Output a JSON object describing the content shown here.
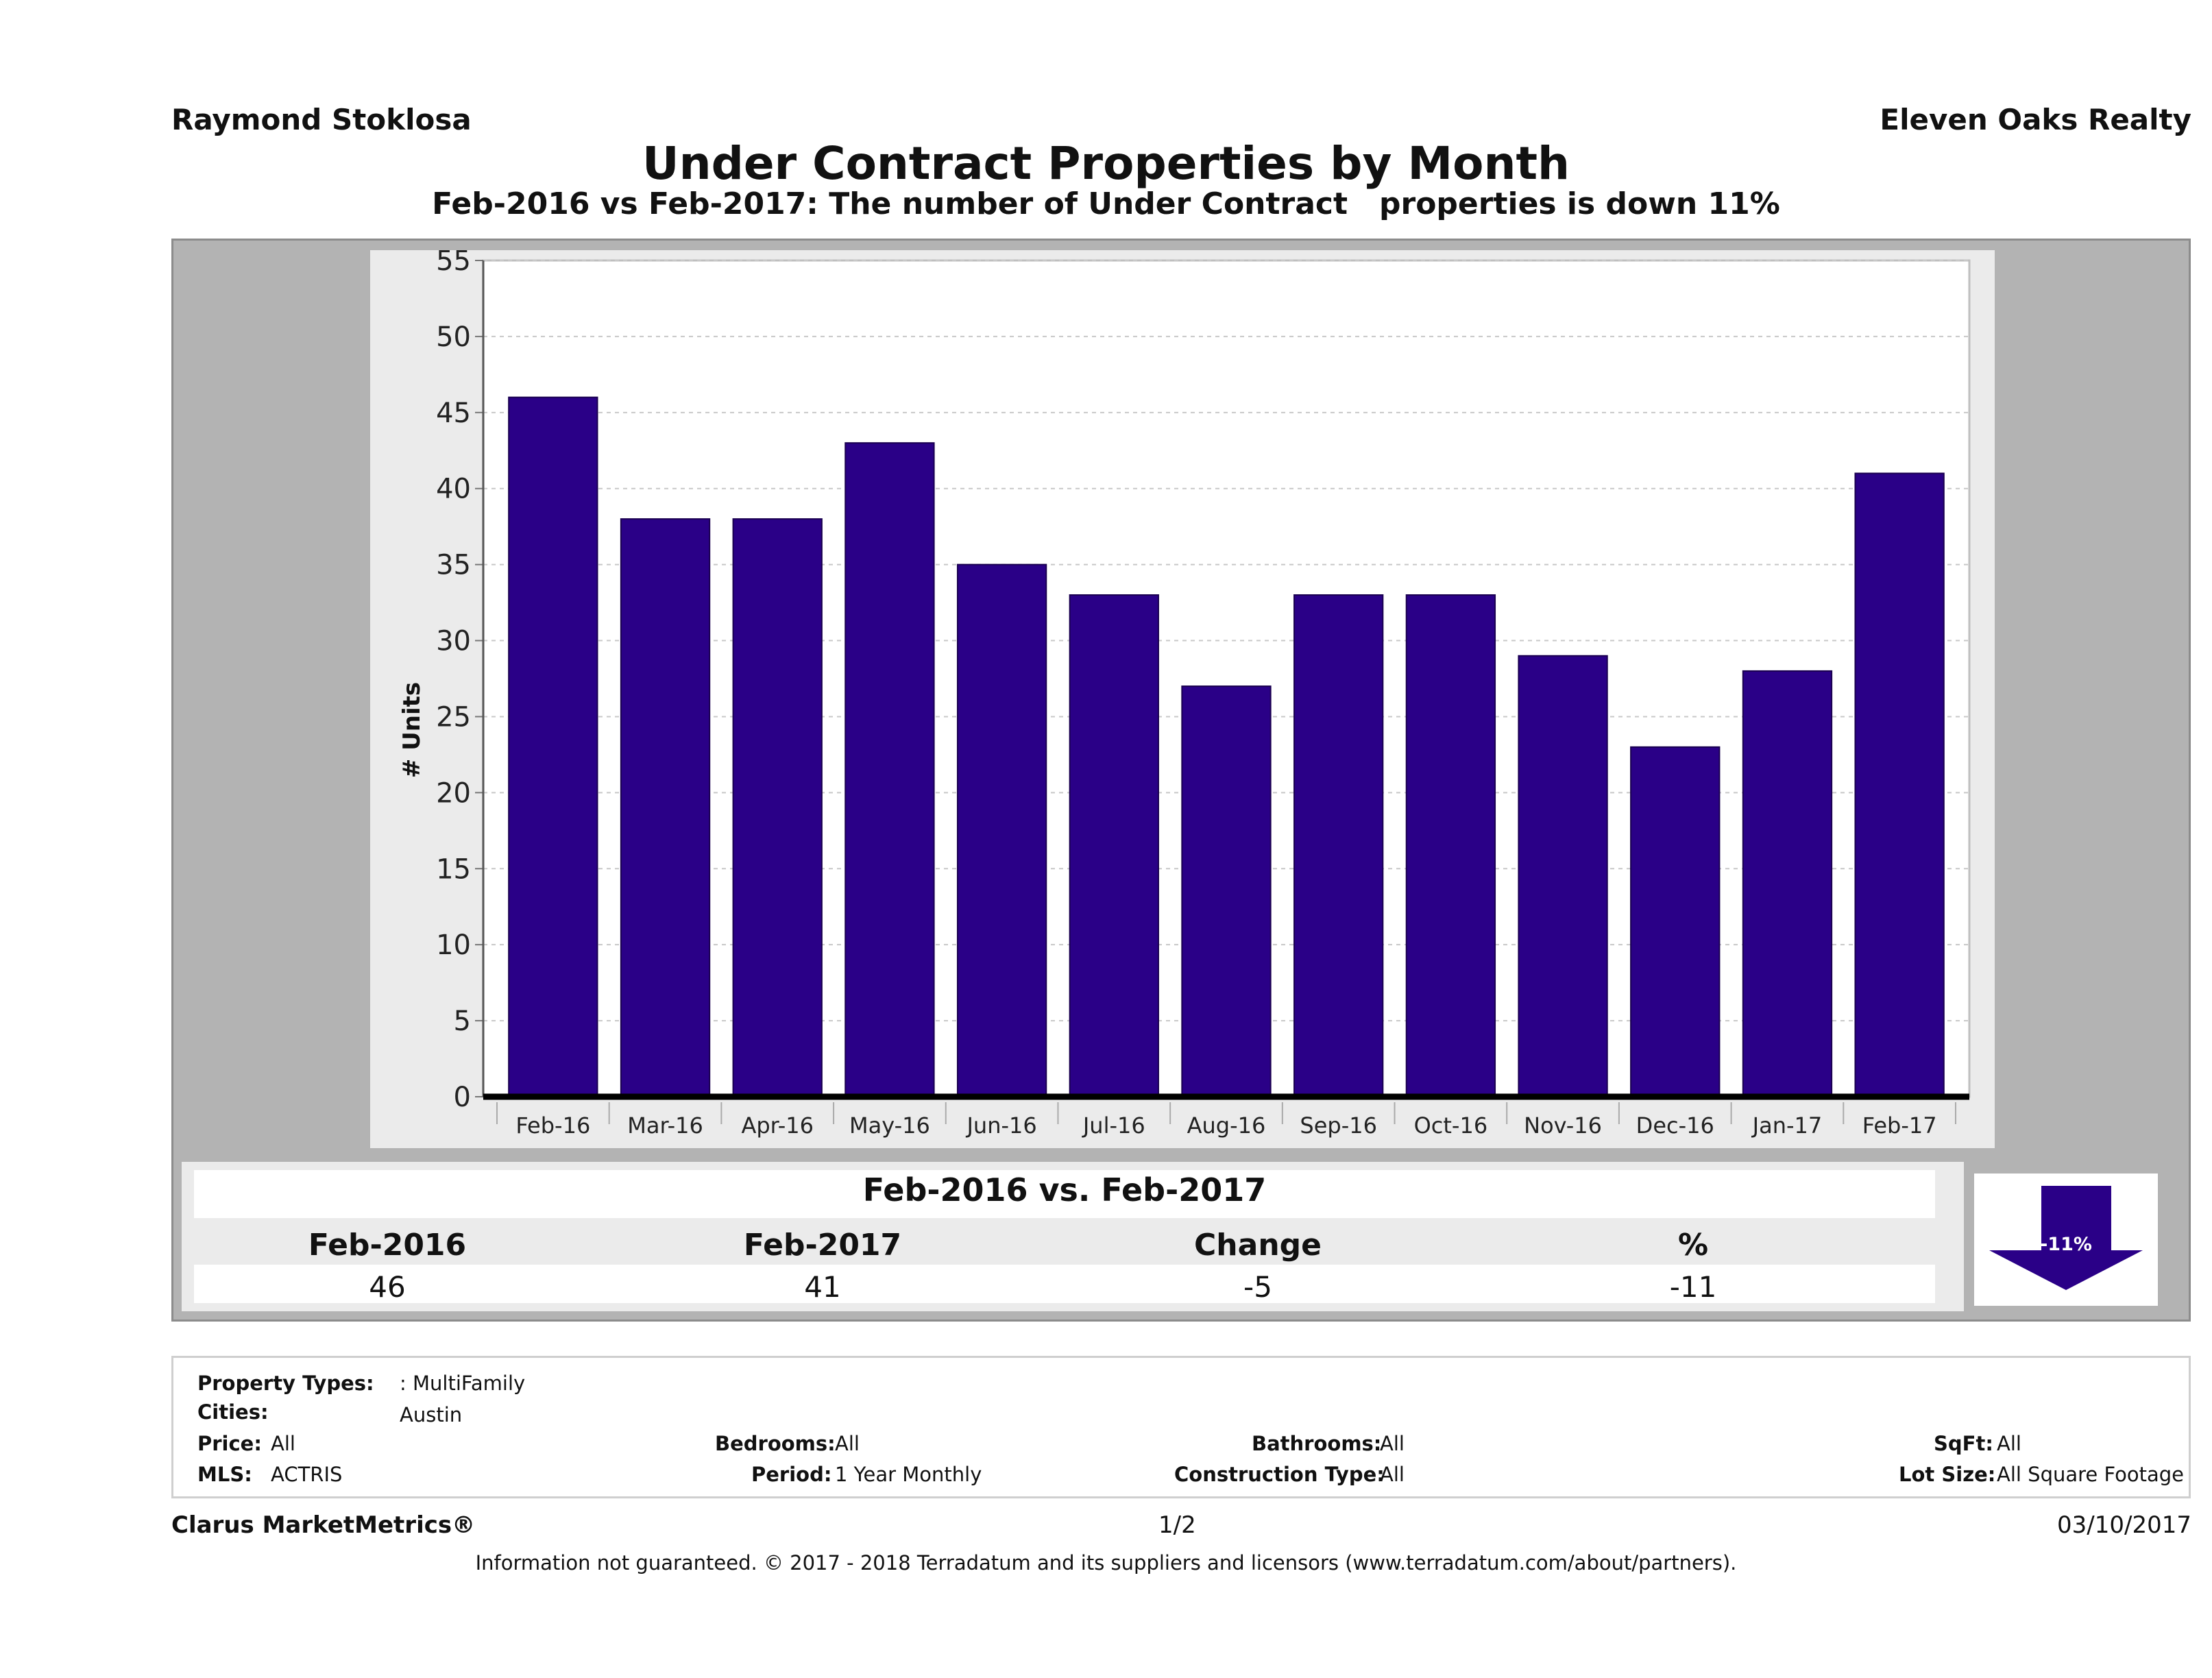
{
  "header": {
    "agent": "Raymond Stoklosa",
    "brokerage": "Eleven Oaks Realty"
  },
  "chart_data": {
    "type": "bar",
    "title": "Under Contract Properties by Month",
    "subtitle": "Feb-2016 vs Feb-2017: The number of Under Contract   properties is down 11%",
    "ylabel": "# Units",
    "xlabel": "",
    "ylim": [
      0,
      55
    ],
    "yticks": [
      0,
      5,
      10,
      15,
      20,
      25,
      30,
      35,
      40,
      45,
      50,
      55
    ],
    "grid": true,
    "categories": [
      "Feb-16",
      "Mar-16",
      "Apr-16",
      "May-16",
      "Jun-16",
      "Jul-16",
      "Aug-16",
      "Sep-16",
      "Oct-16",
      "Nov-16",
      "Dec-16",
      "Jan-17",
      "Feb-17"
    ],
    "values": [
      46,
      38,
      38,
      43,
      35,
      33,
      27,
      33,
      33,
      29,
      23,
      28,
      41
    ],
    "colors": {
      "bar": "#2a0087",
      "plot_bg": "#ffffff",
      "panel_bg": "#ebebeb"
    }
  },
  "comparison": {
    "title": "Feb-2016 vs. Feb-2017",
    "headers": [
      "Feb-2016",
      "Feb-2017",
      "Change",
      "%"
    ],
    "values": [
      "46",
      "41",
      "-5",
      "-11"
    ],
    "badge": "-11%",
    "badge_icon": "down-arrow-icon",
    "badge_color": "#2a0087"
  },
  "filters": {
    "property_types_label": "Property Types:",
    "property_types_value": ": MultiFamily",
    "cities_label": "Cities:",
    "cities_value": "Austin",
    "price_label": "Price:",
    "price_value": "All",
    "bedrooms_label": "Bedrooms:",
    "bedrooms_value": "All",
    "bathrooms_label": "Bathrooms:",
    "bathrooms_value": "All",
    "sqft_label": "SqFt:",
    "sqft_value": "All",
    "mls_label": "MLS:",
    "mls_value": "ACTRIS",
    "period_label": "Period:",
    "period_value": "1 Year Monthly",
    "construction_label": "Construction Type:",
    "construction_value": "All",
    "lot_label": "Lot Size:",
    "lot_value": "All Square Footage"
  },
  "footer": {
    "brand": "Clarus MarketMetrics®",
    "page": "1/2",
    "date": "03/10/2017",
    "disclaimer": "Information not guaranteed. © 2017 - 2018 Terradatum and its suppliers and licensors (www.terradatum.com/about/partners)."
  }
}
